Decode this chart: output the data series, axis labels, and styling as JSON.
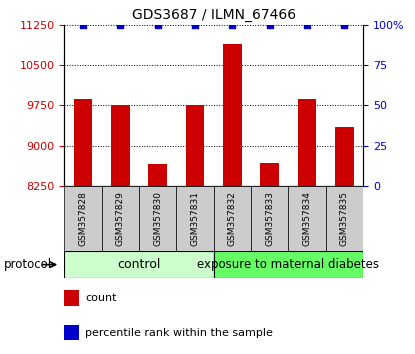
{
  "title": "GDS3687 / ILMN_67466",
  "samples": [
    "GSM357828",
    "GSM357829",
    "GSM357830",
    "GSM357831",
    "GSM357832",
    "GSM357833",
    "GSM357834",
    "GSM357835"
  ],
  "red_values": [
    9870,
    9750,
    8660,
    9750,
    10900,
    8680,
    9870,
    9350
  ],
  "blue_values": [
    100,
    100,
    100,
    100,
    100,
    100,
    100,
    100
  ],
  "ylim_left": [
    8250,
    11250
  ],
  "ylim_right": [
    0,
    100
  ],
  "yticks_left": [
    8250,
    9000,
    9750,
    10500,
    11250
  ],
  "yticks_right": [
    0,
    25,
    50,
    75,
    100
  ],
  "left_color": "#cc0000",
  "right_color": "#0000cc",
  "bar_color": "#cc0000",
  "dot_color": "#0000cc",
  "control_label": "control",
  "exposure_label": "exposure to maternal diabetes",
  "protocol_label": "protocol",
  "legend_count": "count",
  "legend_percentile": "percentile rank within the sample",
  "control_color": "#ccffcc",
  "exposure_color": "#66ff66",
  "tick_bg_color": "#cccccc",
  "n_control": 4,
  "n_exposure": 4,
  "figsize": [
    4.15,
    3.54
  ],
  "dpi": 100
}
